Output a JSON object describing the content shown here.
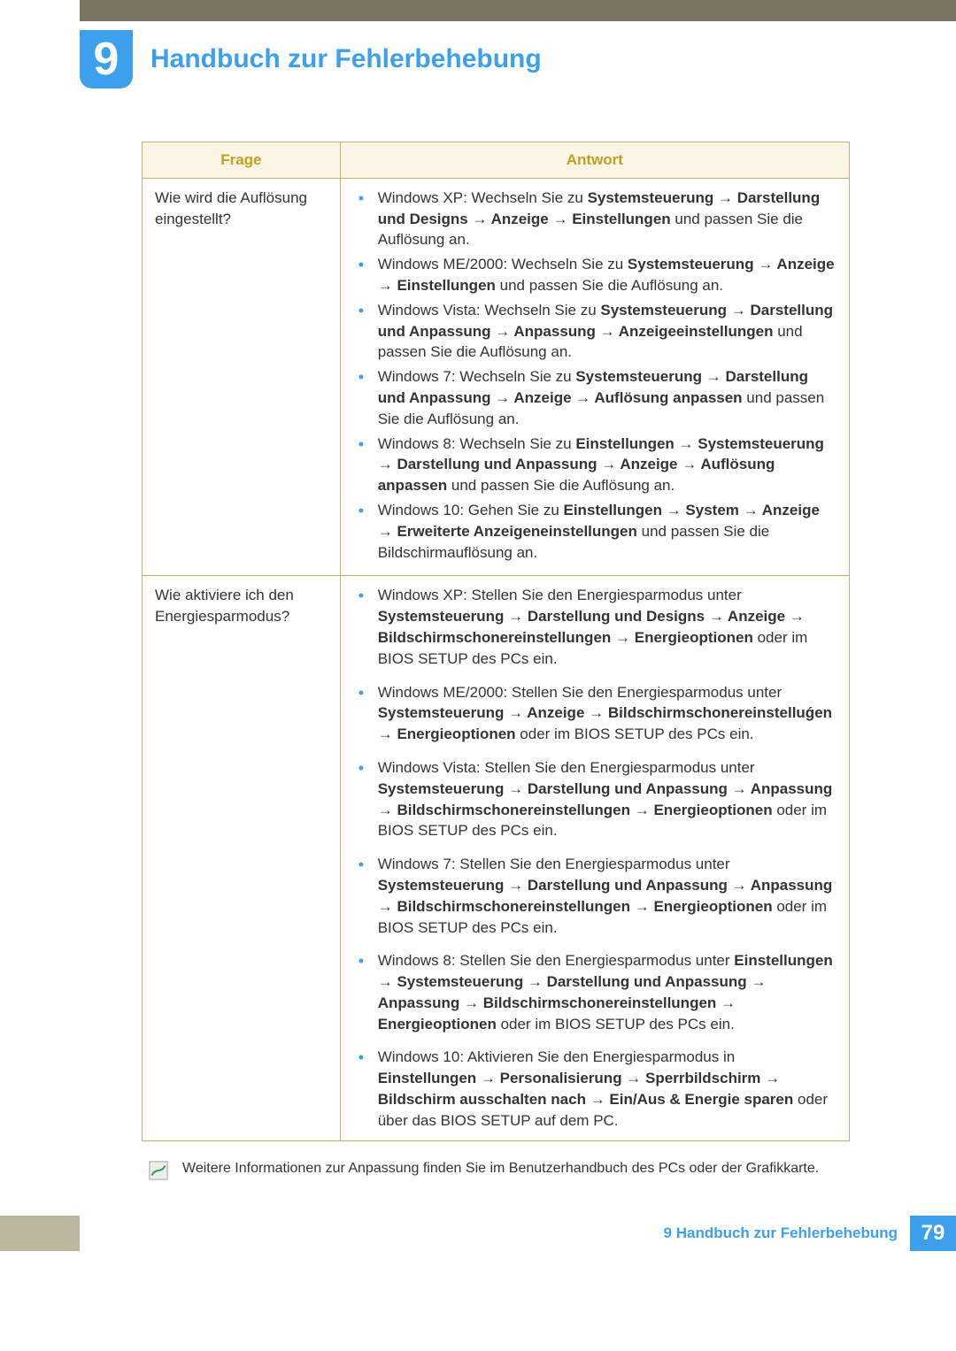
{
  "header": {
    "chapter_number": "9",
    "title": "Handbuch zur Fehlerbehebung"
  },
  "table": {
    "col_question": "Frage",
    "col_answer": "Antwort",
    "rows": [
      {
        "question": "Wie wird die Auflösung eingestellt?",
        "items": [
          {
            "segments": [
              {
                "t": "Windows XP: Wechseln Sie zu "
              },
              {
                "t": "Systemsteuerung",
                "b": true
              },
              {
                "t": " → ",
                "a": true
              },
              {
                "t": "Darstellung und Designs",
                "b": true
              },
              {
                "t": " → ",
                "a": true
              },
              {
                "t": "Anzeige",
                "b": true
              },
              {
                "t": " → ",
                "a": true
              },
              {
                "t": "Einstellungen",
                "b": true
              },
              {
                "t": " und passen Sie die Auflösung an."
              }
            ]
          },
          {
            "segments": [
              {
                "t": "Windows ME/2000: Wechseln Sie zu "
              },
              {
                "t": "Systemsteuerung",
                "b": true
              },
              {
                "t": " → ",
                "a": true
              },
              {
                "t": "Anzeige",
                "b": true
              },
              {
                "t": " → ",
                "a": true
              },
              {
                "t": "Einstellungen",
                "b": true
              },
              {
                "t": " und passen Sie die Auflösung an."
              }
            ]
          },
          {
            "segments": [
              {
                "t": "Windows Vista: Wechseln Sie zu "
              },
              {
                "t": "Systemsteuerung",
                "b": true
              },
              {
                "t": " → ",
                "a": true
              },
              {
                "t": "Darstellung und Anpassung",
                "b": true
              },
              {
                "t": " → ",
                "a": true
              },
              {
                "t": "Anpassung",
                "b": true
              },
              {
                "t": " → ",
                "a": true
              },
              {
                "t": "Anzeigeeinstellungen",
                "b": true
              },
              {
                "t": " und passen Sie die Auflösung an."
              }
            ]
          },
          {
            "segments": [
              {
                "t": "Windows 7: Wechseln Sie zu "
              },
              {
                "t": "Systemsteuerung",
                "b": true
              },
              {
                "t": " → ",
                "a": true
              },
              {
                "t": "Darstellung und Anpassung",
                "b": true
              },
              {
                "t": " → ",
                "a": true
              },
              {
                "t": "Anzeige",
                "b": true
              },
              {
                "t": " → ",
                "a": true
              },
              {
                "t": "Auflösung anpassen",
                "b": true
              },
              {
                "t": " und passen Sie die Auflösung an."
              }
            ]
          },
          {
            "segments": [
              {
                "t": "Windows 8: Wechseln Sie zu "
              },
              {
                "t": "Einstellungen",
                "b": true
              },
              {
                "t": " → ",
                "a": true
              },
              {
                "t": "Systemsteuerung",
                "b": true
              },
              {
                "t": " → ",
                "a": true
              },
              {
                "t": "Darstellung und Anpassung",
                "b": true
              },
              {
                "t": " → ",
                "a": true
              },
              {
                "t": "Anzeige",
                "b": true
              },
              {
                "t": " → ",
                "a": true
              },
              {
                "t": "Auflösung anpassen",
                "b": true
              },
              {
                "t": " und passen Sie die Auflösung an."
              }
            ]
          },
          {
            "segments": [
              {
                "t": "Windows 10: Gehen Sie zu "
              },
              {
                "t": "Einstellungen",
                "b": true
              },
              {
                "t": " → ",
                "a": true
              },
              {
                "t": "System",
                "b": true
              },
              {
                "t": " → ",
                "a": true
              },
              {
                "t": "Anzeige",
                "b": true
              },
              {
                "t": " → ",
                "a": true
              },
              {
                "t": "Erweiterte Anzeigeneinstellungen",
                "b": true
              },
              {
                "t": " und passen Sie die Bildschirmauflösung an."
              }
            ]
          }
        ],
        "spaced": false
      },
      {
        "question": "Wie aktiviere ich den Energiesparmodus?",
        "items": [
          {
            "segments": [
              {
                "t": "Windows XP: Stellen Sie den Energiesparmodus unter "
              },
              {
                "t": "Systemsteuerung",
                "b": true
              },
              {
                "t": " → ",
                "a": true
              },
              {
                "t": "Darstellung und Designs",
                "b": true
              },
              {
                "t": " → ",
                "a": true
              },
              {
                "t": "Anzeige",
                "b": true
              },
              {
                "t": " → ",
                "a": true
              },
              {
                "t": "Bildschirmschonereinstellungen",
                "b": true
              },
              {
                "t": " → ",
                "a": true
              },
              {
                "t": "Energieoptionen",
                "b": true
              },
              {
                "t": " oder im BIOS SETUP des PCs ein."
              }
            ]
          },
          {
            "segments": [
              {
                "t": "Windows ME/2000: Stellen Sie den Energiesparmodus unter "
              },
              {
                "t": "Systemsteuerung",
                "b": true
              },
              {
                "t": " → ",
                "a": true
              },
              {
                "t": "Anzeige",
                "b": true
              },
              {
                "t": " → ",
                "a": true
              },
              {
                "t": "Bildschirmschonereinstelluǵen",
                "b": true
              },
              {
                "t": " → ",
                "a": true
              },
              {
                "t": "Energieoptionen",
                "b": true
              },
              {
                "t": " oder im BIOS SETUP des PCs ein."
              }
            ]
          },
          {
            "segments": [
              {
                "t": "Windows Vista: Stellen Sie den Energiesparmodus unter "
              },
              {
                "t": "Systemsteuerung",
                "b": true
              },
              {
                "t": " → ",
                "a": true
              },
              {
                "t": "Darstellung und Anpassung",
                "b": true
              },
              {
                "t": " → ",
                "a": true
              },
              {
                "t": "Anpassung",
                "b": true
              },
              {
                "t": " → ",
                "a": true
              },
              {
                "t": "Bildschirmschonereinstellungen",
                "b": true
              },
              {
                "t": " → ",
                "a": true
              },
              {
                "t": "Energieoptionen",
                "b": true
              },
              {
                "t": " oder im BIOS SETUP des PCs ein."
              }
            ]
          },
          {
            "segments": [
              {
                "t": "Windows 7: Stellen Sie den Energiesparmodus unter "
              },
              {
                "t": "Systemsteuerung",
                "b": true
              },
              {
                "t": " → ",
                "a": true
              },
              {
                "t": "Darstellung und Anpassung",
                "b": true
              },
              {
                "t": " → ",
                "a": true
              },
              {
                "t": "Anpassung",
                "b": true
              },
              {
                "t": " → ",
                "a": true
              },
              {
                "t": "Bildschirmschonereinstellungen",
                "b": true
              },
              {
                "t": " → ",
                "a": true
              },
              {
                "t": "Energieoptionen",
                "b": true
              },
              {
                "t": " oder im BIOS SETUP des PCs ein."
              }
            ]
          },
          {
            "segments": [
              {
                "t": "Windows 8: Stellen Sie den Energiesparmodus unter "
              },
              {
                "t": "Einstellungen",
                "b": true
              },
              {
                "t": " → ",
                "a": true
              },
              {
                "t": "Systemsteuerung",
                "b": true
              },
              {
                "t": " → ",
                "a": true
              },
              {
                "t": "Darstellung und Anpassung",
                "b": true
              },
              {
                "t": " → ",
                "a": true
              },
              {
                "t": "Anpassung",
                "b": true
              },
              {
                "t": " → ",
                "a": true
              },
              {
                "t": "Bildschirmschonereinstellungen",
                "b": true
              },
              {
                "t": " → ",
                "a": true
              },
              {
                "t": "Energieoptionen",
                "b": true
              },
              {
                "t": " oder im BIOS SETUP des PCs ein."
              }
            ]
          },
          {
            "segments": [
              {
                "t": "Windows 10: Aktivieren Sie den Energiesparmodus in "
              },
              {
                "t": "Einstellungen",
                "b": true
              },
              {
                "t": " → ",
                "a": true
              },
              {
                "t": "Personalisierung",
                "b": true
              },
              {
                "t": " → ",
                "a": true
              },
              {
                "t": "Sperrbildschirm",
                "b": true
              },
              {
                "t": " → ",
                "a": true
              },
              {
                "t": "Bildschirm ausschalten nach",
                "b": true
              },
              {
                "t": " → ",
                "a": true
              },
              {
                "t": "Ein/Aus & Energie sparen",
                "b": true
              },
              {
                "t": " oder über das BIOS SETUP auf dem PC."
              }
            ]
          }
        ],
        "spaced": true
      }
    ]
  },
  "note": "Weitere Informationen zur Anpassung finden Sie im Benutzerhandbuch des PCs oder der Grafikkarte.",
  "footer": {
    "label": "9 Handbuch zur Fehlerbehebung",
    "page": "79"
  },
  "colors": {
    "accent": "#3ca0ed",
    "header_bar": "#7a7560",
    "footer_bar": "#bcb79e",
    "table_border": "#c0b070",
    "th_bg": "#faf5e4",
    "th_text": "#c0a020"
  }
}
